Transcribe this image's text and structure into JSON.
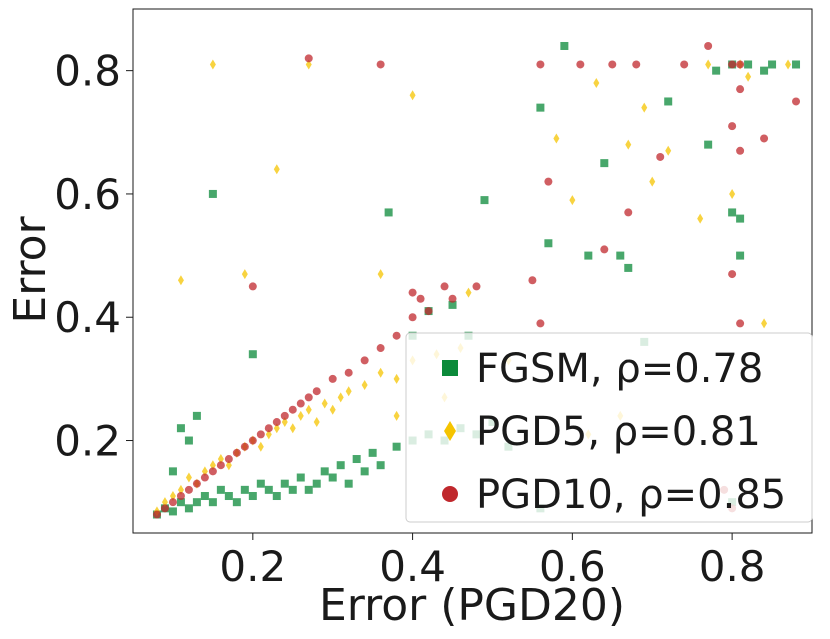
{
  "chart_data": {
    "type": "scatter",
    "title": "",
    "xlabel": "Error (PGD20)",
    "ylabel": "Error",
    "xlim": [
      0.05,
      0.9
    ],
    "ylim": [
      0.05,
      0.9
    ],
    "xticks": [
      0.2,
      0.4,
      0.6,
      0.8
    ],
    "yticks": [
      0.2,
      0.4,
      0.6,
      0.8
    ],
    "xtick_labels": [
      "0.2",
      "0.4",
      "0.6",
      "0.8"
    ],
    "ytick_labels": [
      "0.2",
      "0.4",
      "0.6",
      "0.8"
    ],
    "grid": false,
    "legend_position": "bottom-right",
    "series": [
      {
        "name": "FGSM",
        "rho": "0.78",
        "label": "FGSM, ρ=0.78",
        "marker": "square",
        "color": "#0b8a3a",
        "points": [
          [
            0.08,
            0.08
          ],
          [
            0.09,
            0.09
          ],
          [
            0.1,
            0.085
          ],
          [
            0.11,
            0.1
          ],
          [
            0.12,
            0.09
          ],
          [
            0.13,
            0.1
          ],
          [
            0.14,
            0.11
          ],
          [
            0.15,
            0.1
          ],
          [
            0.16,
            0.12
          ],
          [
            0.17,
            0.11
          ],
          [
            0.18,
            0.1
          ],
          [
            0.19,
            0.12
          ],
          [
            0.2,
            0.11
          ],
          [
            0.21,
            0.13
          ],
          [
            0.22,
            0.12
          ],
          [
            0.23,
            0.11
          ],
          [
            0.24,
            0.13
          ],
          [
            0.25,
            0.12
          ],
          [
            0.26,
            0.14
          ],
          [
            0.27,
            0.12
          ],
          [
            0.28,
            0.13
          ],
          [
            0.29,
            0.15
          ],
          [
            0.3,
            0.14
          ],
          [
            0.31,
            0.16
          ],
          [
            0.32,
            0.13
          ],
          [
            0.33,
            0.17
          ],
          [
            0.34,
            0.15
          ],
          [
            0.35,
            0.18
          ],
          [
            0.36,
            0.16
          ],
          [
            0.38,
            0.19
          ],
          [
            0.4,
            0.2
          ],
          [
            0.42,
            0.21
          ],
          [
            0.44,
            0.2
          ],
          [
            0.46,
            0.22
          ],
          [
            0.48,
            0.21
          ],
          [
            0.5,
            0.23
          ],
          [
            0.52,
            0.19
          ],
          [
            0.56,
            0.09
          ],
          [
            0.1,
            0.15
          ],
          [
            0.12,
            0.2
          ],
          [
            0.11,
            0.22
          ],
          [
            0.13,
            0.24
          ],
          [
            0.15,
            0.6
          ],
          [
            0.2,
            0.34
          ],
          [
            0.37,
            0.57
          ],
          [
            0.4,
            0.37
          ],
          [
            0.42,
            0.41
          ],
          [
            0.45,
            0.42
          ],
          [
            0.47,
            0.37
          ],
          [
            0.49,
            0.59
          ],
          [
            0.56,
            0.74
          ],
          [
            0.59,
            0.84
          ],
          [
            0.57,
            0.52
          ],
          [
            0.62,
            0.5
          ],
          [
            0.64,
            0.65
          ],
          [
            0.66,
            0.5
          ],
          [
            0.67,
            0.48
          ],
          [
            0.69,
            0.36
          ],
          [
            0.72,
            0.75
          ],
          [
            0.77,
            0.68
          ],
          [
            0.78,
            0.8
          ],
          [
            0.8,
            0.57
          ],
          [
            0.81,
            0.56
          ],
          [
            0.81,
            0.5
          ],
          [
            0.85,
            0.81
          ],
          [
            0.88,
            0.81
          ],
          [
            0.8,
            0.81
          ],
          [
            0.82,
            0.81
          ],
          [
            0.84,
            0.8
          ],
          [
            0.8,
            0.1
          ]
        ]
      },
      {
        "name": "PGD5",
        "rho": "0.81",
        "label": "PGD5, ρ=0.81",
        "marker": "diamond",
        "color": "#f5c400",
        "points": [
          [
            0.08,
            0.085
          ],
          [
            0.09,
            0.1
          ],
          [
            0.1,
            0.11
          ],
          [
            0.11,
            0.12
          ],
          [
            0.12,
            0.14
          ],
          [
            0.13,
            0.13
          ],
          [
            0.14,
            0.15
          ],
          [
            0.15,
            0.16
          ],
          [
            0.16,
            0.17
          ],
          [
            0.17,
            0.16
          ],
          [
            0.18,
            0.18
          ],
          [
            0.19,
            0.19
          ],
          [
            0.2,
            0.2
          ],
          [
            0.21,
            0.19
          ],
          [
            0.22,
            0.21
          ],
          [
            0.23,
            0.22
          ],
          [
            0.24,
            0.23
          ],
          [
            0.25,
            0.22
          ],
          [
            0.26,
            0.24
          ],
          [
            0.27,
            0.25
          ],
          [
            0.28,
            0.23
          ],
          [
            0.29,
            0.26
          ],
          [
            0.3,
            0.25
          ],
          [
            0.31,
            0.27
          ],
          [
            0.32,
            0.28
          ],
          [
            0.34,
            0.29
          ],
          [
            0.36,
            0.31
          ],
          [
            0.38,
            0.3
          ],
          [
            0.4,
            0.33
          ],
          [
            0.43,
            0.34
          ],
          [
            0.46,
            0.35
          ],
          [
            0.11,
            0.46
          ],
          [
            0.15,
            0.81
          ],
          [
            0.19,
            0.47
          ],
          [
            0.23,
            0.64
          ],
          [
            0.27,
            0.81
          ],
          [
            0.4,
            0.76
          ],
          [
            0.36,
            0.47
          ],
          [
            0.38,
            0.24
          ],
          [
            0.44,
            0.27
          ],
          [
            0.47,
            0.44
          ],
          [
            0.52,
            0.33
          ],
          [
            0.58,
            0.69
          ],
          [
            0.6,
            0.59
          ],
          [
            0.63,
            0.78
          ],
          [
            0.67,
            0.68
          ],
          [
            0.69,
            0.74
          ],
          [
            0.7,
            0.62
          ],
          [
            0.72,
            0.67
          ],
          [
            0.76,
            0.56
          ],
          [
            0.8,
            0.6
          ],
          [
            0.82,
            0.79
          ],
          [
            0.84,
            0.39
          ],
          [
            0.62,
            0.21
          ],
          [
            0.66,
            0.24
          ],
          [
            0.77,
            0.81
          ],
          [
            0.81,
            0.81
          ],
          [
            0.87,
            0.81
          ]
        ]
      },
      {
        "name": "PGD10",
        "rho": "0.85",
        "label": "PGD10, ρ=0.85",
        "marker": "circle",
        "color": "#c0282d",
        "points": [
          [
            0.08,
            0.08
          ],
          [
            0.09,
            0.09
          ],
          [
            0.1,
            0.1
          ],
          [
            0.11,
            0.11
          ],
          [
            0.12,
            0.12
          ],
          [
            0.13,
            0.13
          ],
          [
            0.14,
            0.14
          ],
          [
            0.15,
            0.15
          ],
          [
            0.16,
            0.16
          ],
          [
            0.17,
            0.17
          ],
          [
            0.18,
            0.18
          ],
          [
            0.19,
            0.19
          ],
          [
            0.2,
            0.2
          ],
          [
            0.21,
            0.21
          ],
          [
            0.22,
            0.22
          ],
          [
            0.23,
            0.23
          ],
          [
            0.24,
            0.24
          ],
          [
            0.25,
            0.25
          ],
          [
            0.26,
            0.26
          ],
          [
            0.27,
            0.27
          ],
          [
            0.28,
            0.28
          ],
          [
            0.3,
            0.3
          ],
          [
            0.32,
            0.31
          ],
          [
            0.34,
            0.33
          ],
          [
            0.36,
            0.35
          ],
          [
            0.38,
            0.37
          ],
          [
            0.4,
            0.4
          ],
          [
            0.42,
            0.41
          ],
          [
            0.45,
            0.43
          ],
          [
            0.2,
            0.45
          ],
          [
            0.27,
            0.82
          ],
          [
            0.36,
            0.81
          ],
          [
            0.4,
            0.44
          ],
          [
            0.41,
            0.43
          ],
          [
            0.44,
            0.45
          ],
          [
            0.48,
            0.45
          ],
          [
            0.55,
            0.46
          ],
          [
            0.56,
            0.81
          ],
          [
            0.57,
            0.62
          ],
          [
            0.61,
            0.81
          ],
          [
            0.64,
            0.51
          ],
          [
            0.65,
            0.81
          ],
          [
            0.67,
            0.57
          ],
          [
            0.68,
            0.81
          ],
          [
            0.71,
            0.66
          ],
          [
            0.74,
            0.81
          ],
          [
            0.77,
            0.84
          ],
          [
            0.8,
            0.81
          ],
          [
            0.81,
            0.81
          ],
          [
            0.81,
            0.77
          ],
          [
            0.8,
            0.71
          ],
          [
            0.81,
            0.67
          ],
          [
            0.8,
            0.47
          ],
          [
            0.81,
            0.39
          ],
          [
            0.84,
            0.69
          ],
          [
            0.88,
            0.75
          ],
          [
            0.56,
            0.39
          ],
          [
            0.8,
            0.09
          ],
          [
            0.79,
            0.12
          ]
        ]
      }
    ]
  }
}
